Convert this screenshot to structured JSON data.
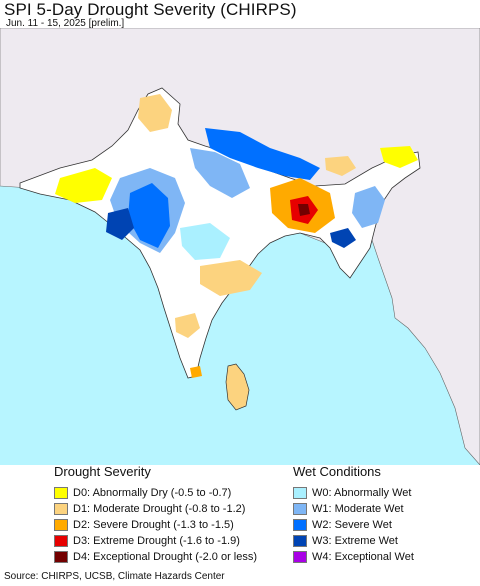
{
  "header": {
    "title": "SPI 5-Day Drought Severity (CHIRPS)",
    "subtitle": "Jun. 11 - 15, 2025 [prelim.]"
  },
  "map": {
    "ocean_color": "#b7f5ff",
    "land_color": "#ffffff",
    "outside_land_color": "#eeeaf0",
    "border_color": "#333333"
  },
  "legend": {
    "drought": {
      "heading": "Drought Severity",
      "items": [
        {
          "label": "D0: Abnormally Dry (-0.5 to -0.7)",
          "color": "#ffff00"
        },
        {
          "label": "D1: Moderate Drought (-0.8 to -1.2)",
          "color": "#fcd37f"
        },
        {
          "label": "D2: Severe Drought (-1.3 to -1.5)",
          "color": "#ffaa00"
        },
        {
          "label": "D3: Extreme Drought (-1.6 to -1.9)",
          "color": "#e60000"
        },
        {
          "label": "D4: Exceptional Drought (-2.0 or less)",
          "color": "#730000"
        }
      ]
    },
    "wet": {
      "heading": "Wet Conditions",
      "items": [
        {
          "label": "W0: Abnormally Wet",
          "color": "#aaf0ff"
        },
        {
          "label": "W1: Moderate Wet",
          "color": "#7fb6f5"
        },
        {
          "label": "W2: Severe Wet",
          "color": "#0070ff"
        },
        {
          "label": "W3: Extreme Wet",
          "color": "#0044b3"
        },
        {
          "label": "W4: Exceptional Wet",
          "color": "#a900e6"
        }
      ]
    }
  },
  "footer": {
    "source": "Source: CHIRPS, UCSB, Climate Hazards Center"
  }
}
